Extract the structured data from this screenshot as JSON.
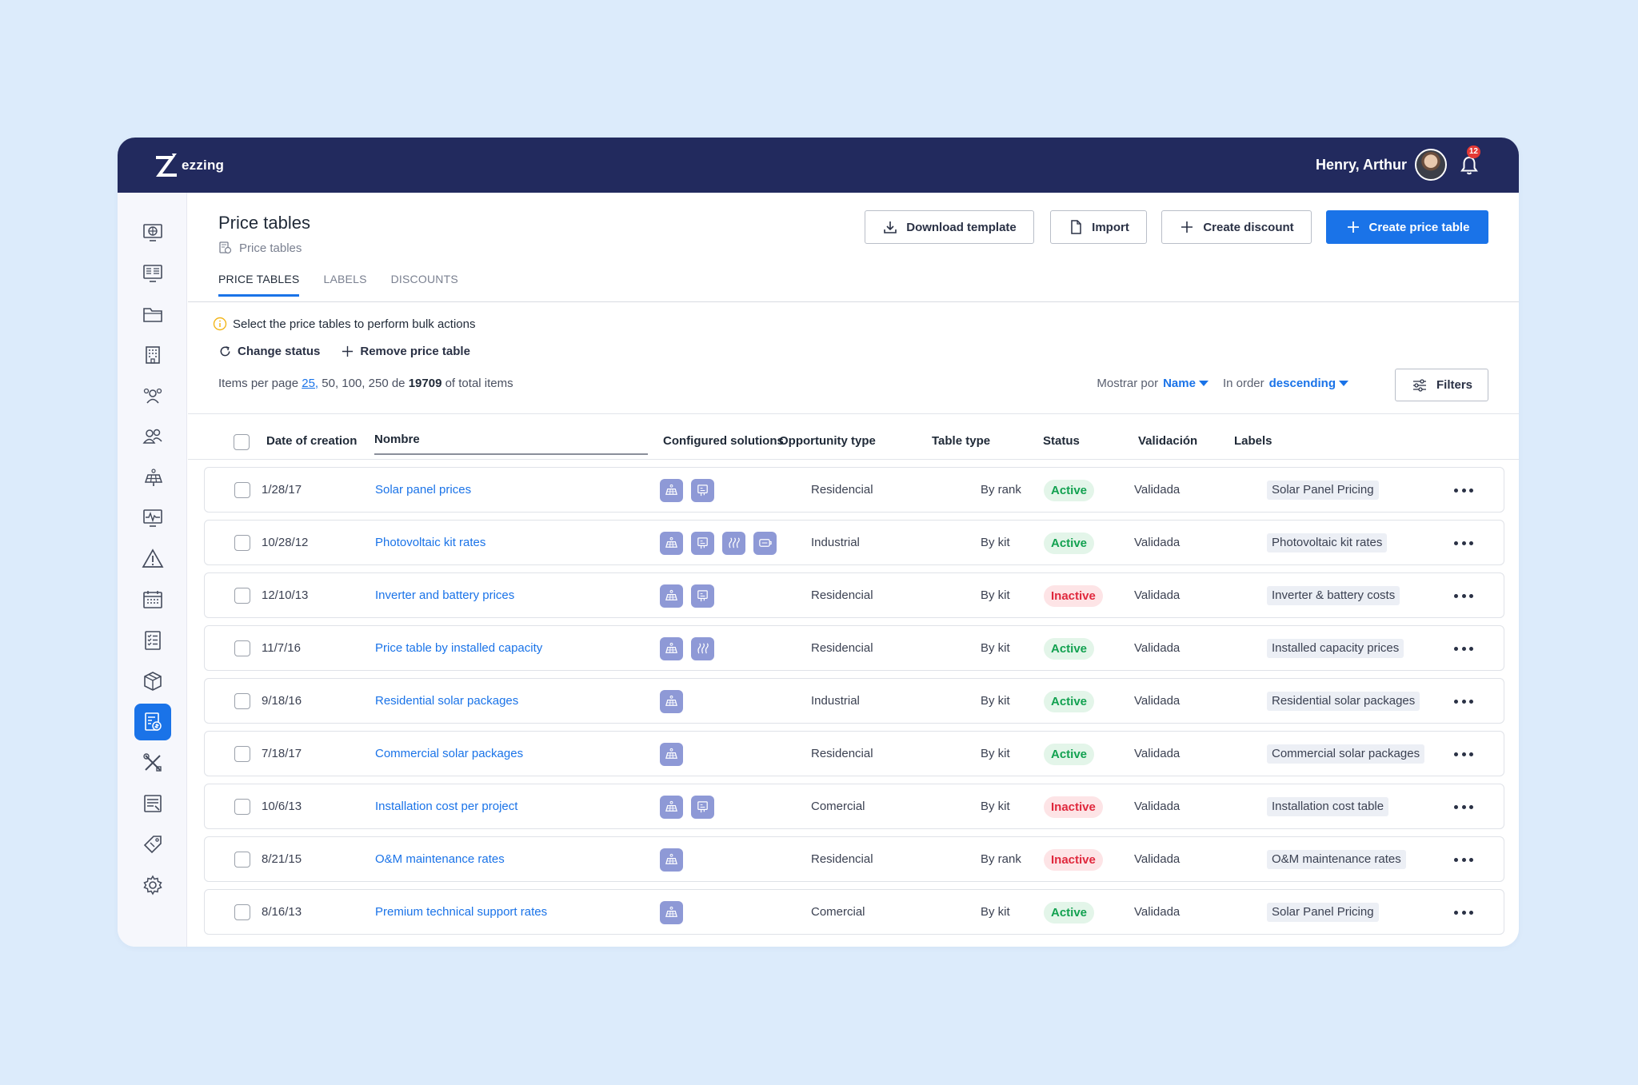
{
  "app": {
    "brand": "ezzing",
    "user_name": "Henry, Arthur",
    "notifications_count": "12"
  },
  "sidebar": {
    "items": [
      {
        "icon": "globe-monitor-icon",
        "active": false
      },
      {
        "icon": "dashboard-icon",
        "active": false
      },
      {
        "icon": "folder-icon",
        "active": false
      },
      {
        "icon": "building-icon",
        "active": false
      },
      {
        "icon": "team-icon",
        "active": false
      },
      {
        "icon": "users-icon",
        "active": false
      },
      {
        "icon": "solar-panel-icon",
        "active": false
      },
      {
        "icon": "monitoring-icon",
        "active": false
      },
      {
        "icon": "warning-icon",
        "active": false
      },
      {
        "icon": "calendar-icon",
        "active": false
      },
      {
        "icon": "checklist-icon",
        "active": false
      },
      {
        "icon": "box-icon",
        "active": false
      },
      {
        "icon": "price-table-icon",
        "active": true
      },
      {
        "icon": "tools-icon",
        "active": false
      },
      {
        "icon": "document-icon",
        "active": false
      },
      {
        "icon": "tag-icon",
        "active": false
      },
      {
        "icon": "gear-icon",
        "active": false
      }
    ]
  },
  "header": {
    "title": "Price tables",
    "breadcrumb": "Price tables",
    "buttons": {
      "download_template": "Download template",
      "import": "Import",
      "create_discount": "Create discount",
      "create_price_table": "Create price table"
    }
  },
  "tabs": [
    {
      "label": "PRICE TABLES",
      "active": true
    },
    {
      "label": "LABELS",
      "active": false
    },
    {
      "label": "DISCOUNTS",
      "active": false
    }
  ],
  "bulk": {
    "hint": "Select the price tables to perform bulk actions",
    "change_status": "Change status",
    "remove": "Remove price table"
  },
  "pagination": {
    "prefix": "Items per page",
    "first_option": "25,",
    "other_options": " 50, 100, 250 de ",
    "total": "19709",
    "suffix": " of total items"
  },
  "sort": {
    "show_by_label": "Mostrar por",
    "show_by_value": "Name",
    "order_label": "In order",
    "order_value": "descending",
    "filters": "Filters"
  },
  "table": {
    "columns": {
      "date": "Date of creation",
      "name": "Nombre",
      "solutions": "Configured solutions",
      "opportunity": "Opportunity type",
      "table_type": "Table type",
      "status": "Status",
      "validation": "Validación",
      "labels": "Labels"
    },
    "rows": [
      {
        "date": "1/28/17",
        "name": "Solar panel prices",
        "solutions": [
          "solar-panel-icon",
          "inverter-icon"
        ],
        "opportunity": "Residencial",
        "table_type": "By rank",
        "status": "Active",
        "validation": "Validada",
        "label": "Solar Panel Pricing"
      },
      {
        "date": "10/28/12",
        "name": "Photovoltaic kit rates",
        "solutions": [
          "solar-panel-icon",
          "inverter-icon",
          "heat-icon",
          "battery-icon"
        ],
        "opportunity": "Industrial",
        "table_type": "By kit",
        "status": "Active",
        "validation": "Validada",
        "label": "Photovoltaic kit rates"
      },
      {
        "date": "12/10/13",
        "name": "Inverter and battery prices",
        "solutions": [
          "solar-panel-icon",
          "inverter-icon"
        ],
        "opportunity": "Residencial",
        "table_type": "By kit",
        "status": "Inactive",
        "validation": "Validada",
        "label": "Inverter & battery costs"
      },
      {
        "date": "11/7/16",
        "name": "Price table by installed capacity",
        "solutions": [
          "solar-panel-icon",
          "heat-icon"
        ],
        "opportunity": "Residencial",
        "table_type": "By kit",
        "status": "Active",
        "validation": "Validada",
        "label": "Installed capacity prices"
      },
      {
        "date": "9/18/16",
        "name": "Residential solar packages",
        "solutions": [
          "solar-panel-icon"
        ],
        "opportunity": "Industrial",
        "table_type": "By kit",
        "status": "Active",
        "validation": "Validada",
        "label": "Residential solar packages"
      },
      {
        "date": "7/18/17",
        "name": "Commercial solar packages",
        "solutions": [
          "solar-panel-icon"
        ],
        "opportunity": "Residencial",
        "table_type": "By kit",
        "status": "Active",
        "validation": "Validada",
        "label": "Commercial solar packages"
      },
      {
        "date": "10/6/13",
        "name": "Installation cost per project",
        "solutions": [
          "solar-panel-icon",
          "inverter-icon"
        ],
        "opportunity": "Comercial",
        "table_type": "By kit",
        "status": "Inactive",
        "validation": "Validada",
        "label": "Installation cost table"
      },
      {
        "date": "8/21/15",
        "name": "O&M maintenance rates",
        "solutions": [
          "solar-panel-icon"
        ],
        "opportunity": "Residencial",
        "table_type": "By rank",
        "status": "Inactive",
        "validation": "Validada",
        "label": "O&M maintenance rates"
      },
      {
        "date": "8/16/13",
        "name": "Premium technical support rates",
        "solutions": [
          "solar-panel-icon"
        ],
        "opportunity": "Comercial",
        "table_type": "By kit",
        "status": "Active",
        "validation": "Validada",
        "label": "Solar Panel Pricing"
      }
    ]
  }
}
